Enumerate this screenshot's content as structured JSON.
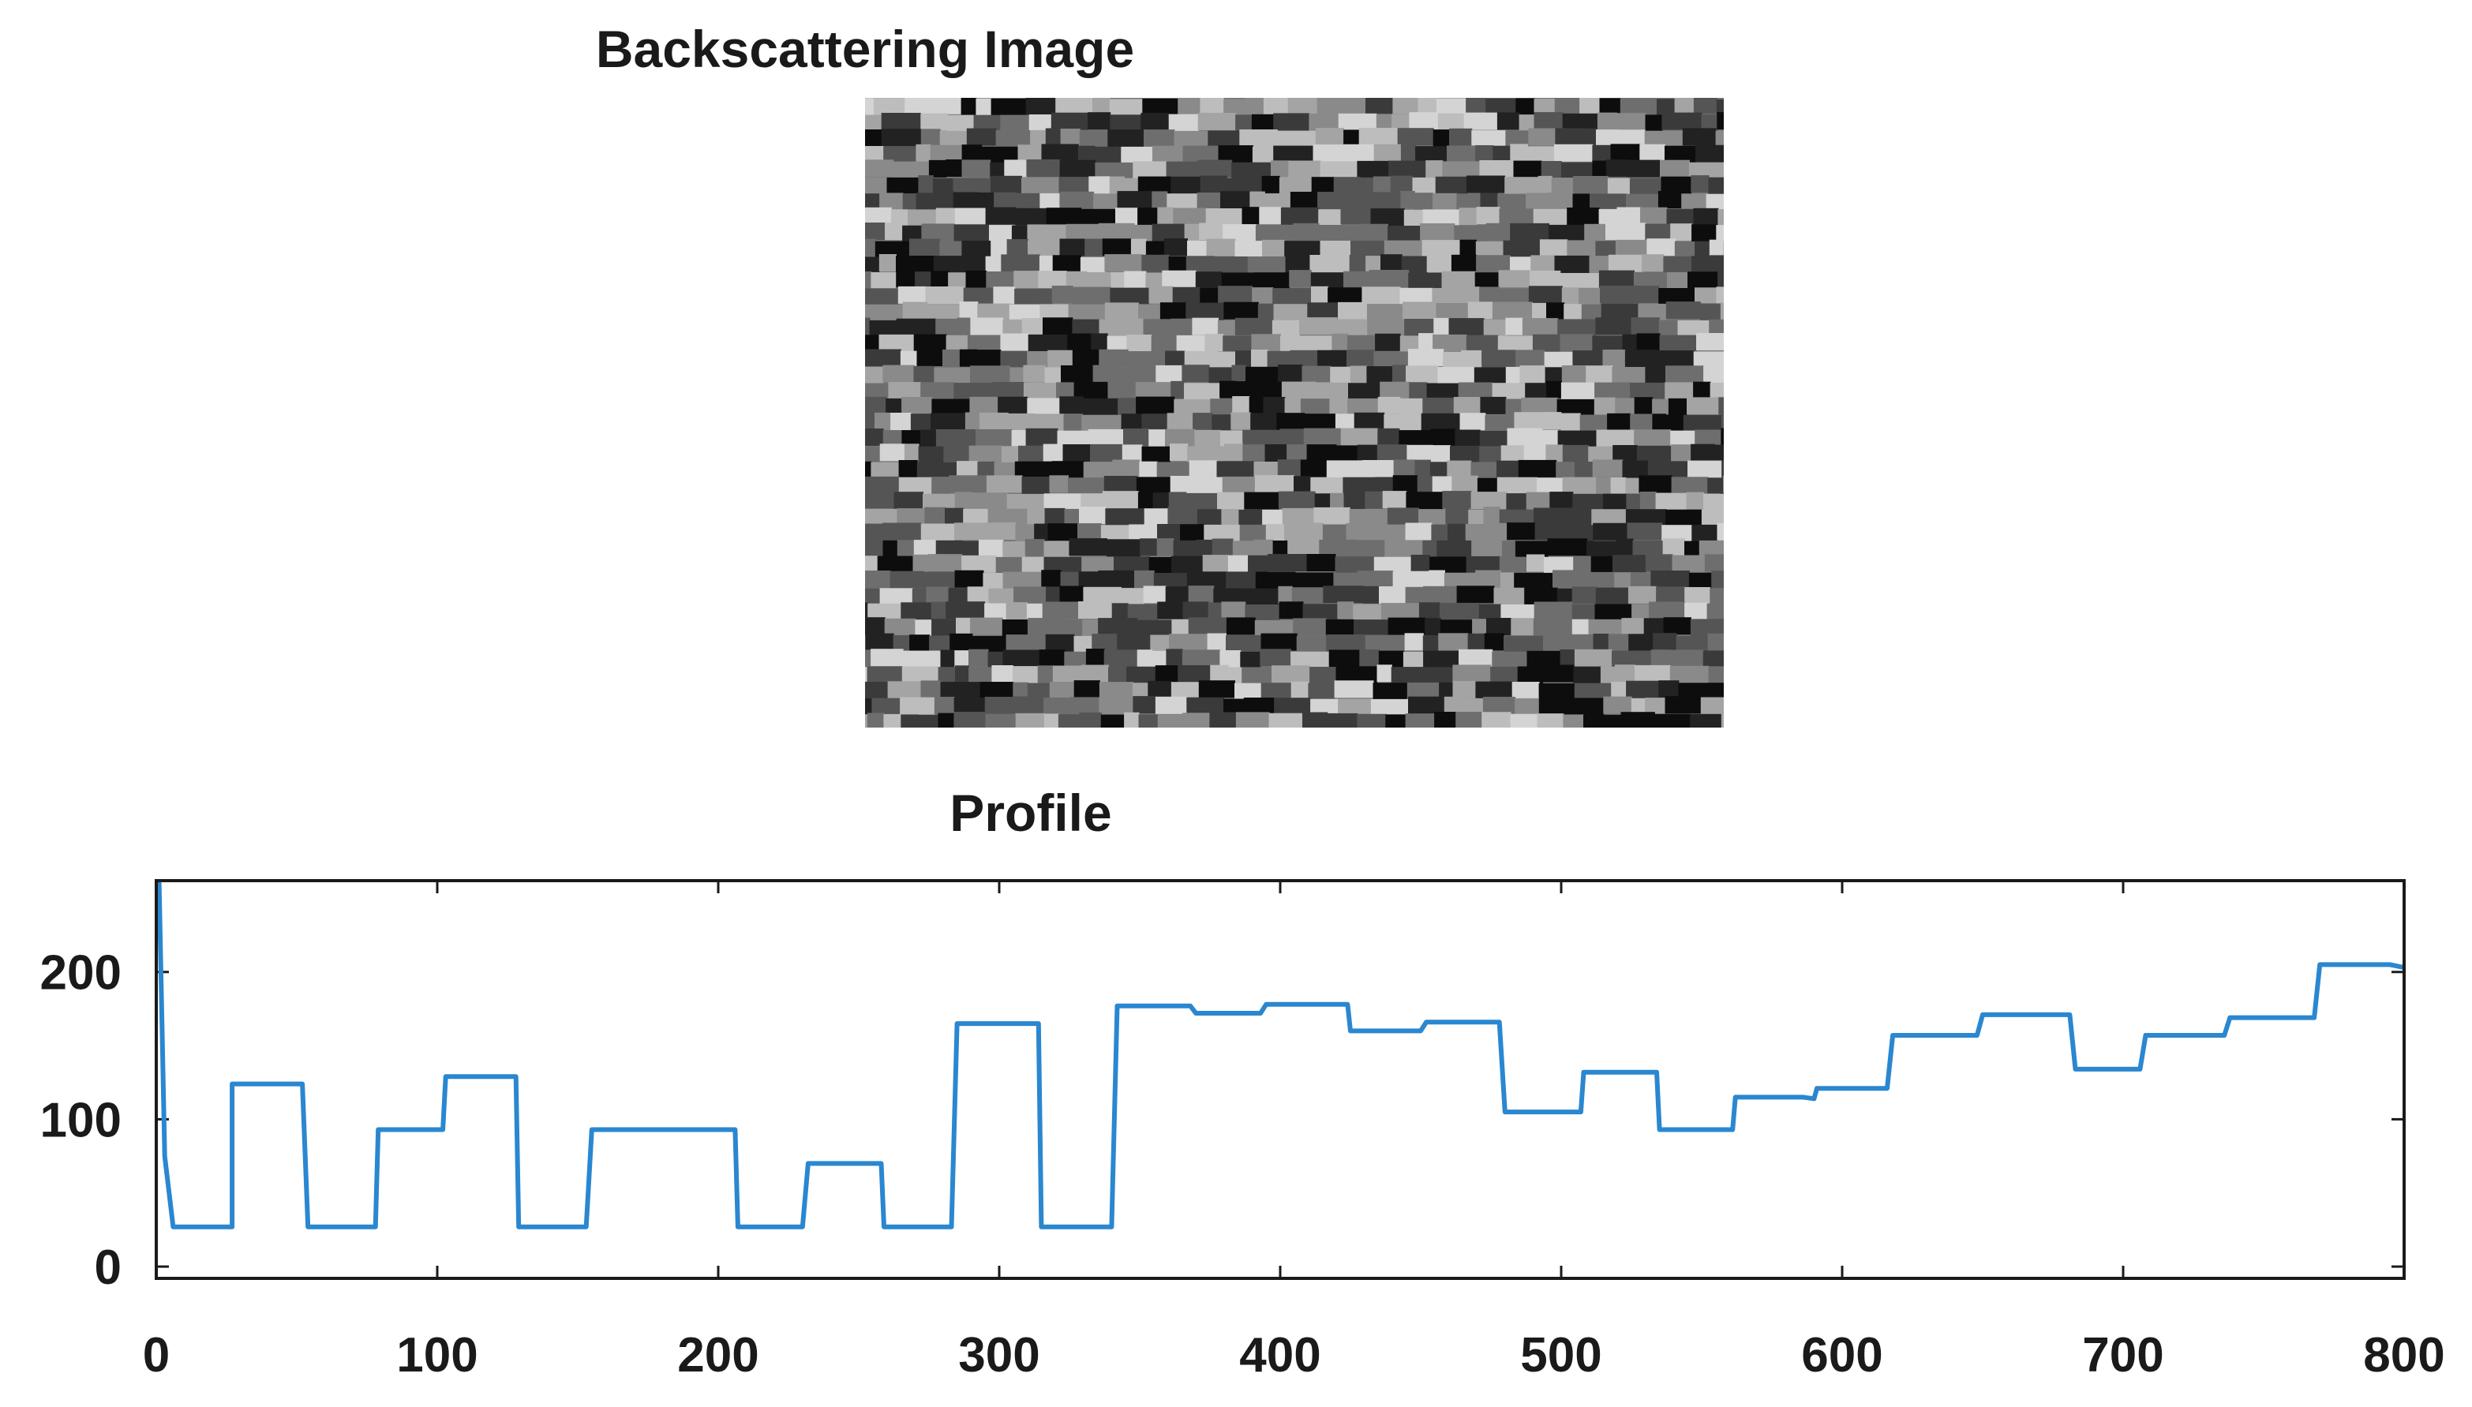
{
  "image_panel": {
    "title": "Backscattering Image",
    "palette": [
      "#0d0d0d",
      "#222222",
      "#3a3a3a",
      "#555555",
      "#6e6e6e",
      "#8a8a8a",
      "#a4a4a4",
      "#bdbdbd",
      "#d4d4d4"
    ]
  },
  "chart_data": {
    "type": "line",
    "title": "Profile",
    "xlabel": "",
    "ylabel": "",
    "xlim": [
      0,
      800
    ],
    "ylim": [
      -8,
      262
    ],
    "xticks": [
      0,
      100,
      200,
      300,
      400,
      500,
      600,
      700,
      800
    ],
    "yticks": [
      0,
      100,
      200
    ],
    "line_color": "#2a87d0",
    "series": [
      {
        "values": [
          [
            0,
            262
          ],
          [
            1,
            260
          ],
          [
            3,
            75
          ],
          [
            6,
            27
          ],
          [
            27,
            27
          ],
          [
            27,
            124
          ],
          [
            52,
            124
          ],
          [
            54,
            27
          ],
          [
            78,
            27
          ],
          [
            79,
            93
          ],
          [
            102,
            93
          ],
          [
            103,
            129
          ],
          [
            128,
            129
          ],
          [
            129,
            27
          ],
          [
            153,
            27
          ],
          [
            155,
            93
          ],
          [
            164,
            93
          ],
          [
            206,
            93
          ],
          [
            207,
            27
          ],
          [
            230,
            27
          ],
          [
            232,
            70
          ],
          [
            258,
            70
          ],
          [
            259,
            27
          ],
          [
            283,
            27
          ],
          [
            285,
            165
          ],
          [
            314,
            165
          ],
          [
            315,
            27
          ],
          [
            340,
            27
          ],
          [
            342,
            177
          ],
          [
            368,
            177
          ],
          [
            370,
            172
          ],
          [
            393,
            172
          ],
          [
            395,
            178
          ],
          [
            424,
            178
          ],
          [
            425,
            160
          ],
          [
            450,
            160
          ],
          [
            452,
            166
          ],
          [
            478,
            166
          ],
          [
            480,
            105
          ],
          [
            507,
            105
          ],
          [
            508,
            132
          ],
          [
            534,
            132
          ],
          [
            535,
            93
          ],
          [
            561,
            93
          ],
          [
            562,
            115
          ],
          [
            586,
            115
          ],
          [
            590,
            114
          ],
          [
            591,
            121
          ],
          [
            616,
            121
          ],
          [
            618,
            157
          ],
          [
            648,
            157
          ],
          [
            650,
            171
          ],
          [
            681,
            171
          ],
          [
            683,
            134
          ],
          [
            706,
            134
          ],
          [
            708,
            157
          ],
          [
            736,
            157
          ],
          [
            738,
            169
          ],
          [
            768,
            169
          ],
          [
            770,
            205
          ],
          [
            795,
            205
          ],
          [
            800,
            203
          ]
        ]
      }
    ]
  }
}
